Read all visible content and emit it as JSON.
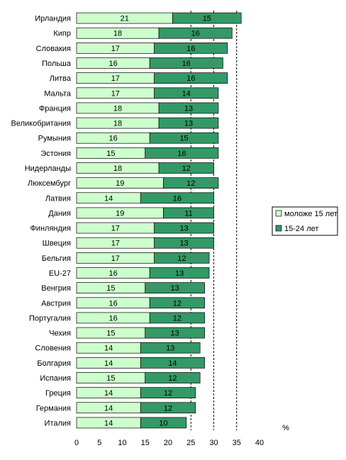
{
  "chart_data": {
    "type": "bar",
    "orientation": "horizontal",
    "stacked": true,
    "categories": [
      "Ирландия",
      "Кипр",
      "Словакия",
      "Польша",
      "Литва",
      "Мальта",
      "Франция",
      "Великобритания",
      "Румыния",
      "Эстония",
      "Нидерланды",
      "Люксембург",
      "Латвия",
      "Дания",
      "Финляндия",
      "Швеция",
      "Бельгия",
      "EU-27",
      "Венгрия",
      "Австрия",
      "Португалия",
      "Чехия",
      "Словения",
      "Болгария",
      "Испания",
      "Греция",
      "Германия",
      "Италия"
    ],
    "series": [
      {
        "name": "моложе 15 лет",
        "color": "#ccffcc",
        "values": [
          21,
          18,
          17,
          16,
          17,
          17,
          18,
          18,
          16,
          15,
          18,
          19,
          14,
          19,
          17,
          17,
          17,
          16,
          15,
          16,
          16,
          15,
          14,
          14,
          15,
          14,
          14,
          14
        ]
      },
      {
        "name": "15-24 лет",
        "color": "#339966",
        "values": [
          15,
          16,
          16,
          16,
          16,
          14,
          13,
          13,
          15,
          16,
          12,
          12,
          16,
          11,
          13,
          13,
          12,
          13,
          13,
          12,
          12,
          13,
          13,
          14,
          12,
          12,
          12,
          10
        ]
      }
    ],
    "xlim": [
      0,
      40
    ],
    "x_ticks": [
      0,
      5,
      10,
      15,
      20,
      25,
      30,
      35,
      40
    ],
    "reference_lines": [
      25,
      30,
      35
    ],
    "unit_label": "%",
    "legend_position": "right"
  }
}
